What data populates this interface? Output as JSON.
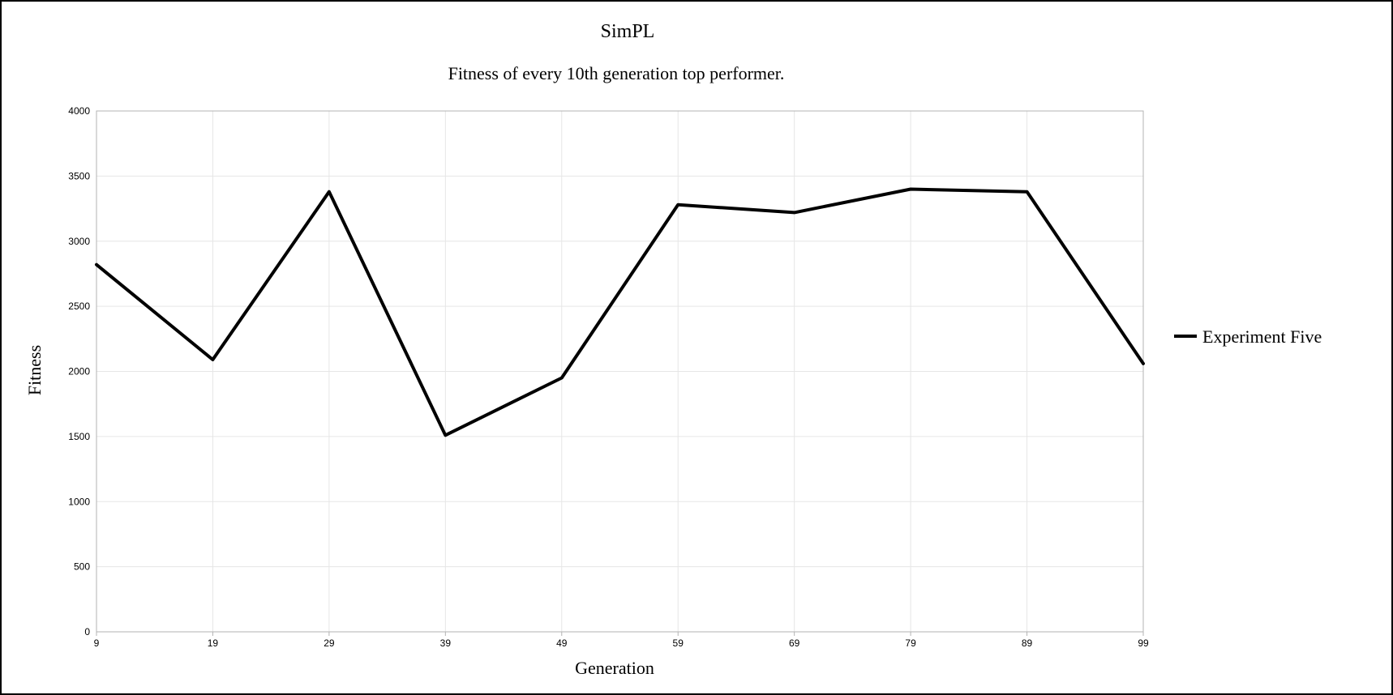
{
  "chart_data": {
    "type": "line",
    "title": "SimPL",
    "subtitle": "Fitness of every 10th generation top performer.",
    "xlabel": "Generation",
    "ylabel": "Fitness",
    "categories": [
      "9",
      "19",
      "29",
      "39",
      "49",
      "59",
      "69",
      "79",
      "89",
      "99"
    ],
    "series": [
      {
        "name": "Experiment Five",
        "color": "#000000",
        "values": [
          2820,
          2090,
          3380,
          1510,
          1950,
          3280,
          3220,
          3400,
          3380,
          2060
        ]
      }
    ],
    "ylim": [
      0,
      4000
    ],
    "yticks": [
      0,
      500,
      1000,
      1500,
      2000,
      2500,
      3000,
      3500,
      4000
    ],
    "grid": true,
    "legend_position": "right"
  }
}
